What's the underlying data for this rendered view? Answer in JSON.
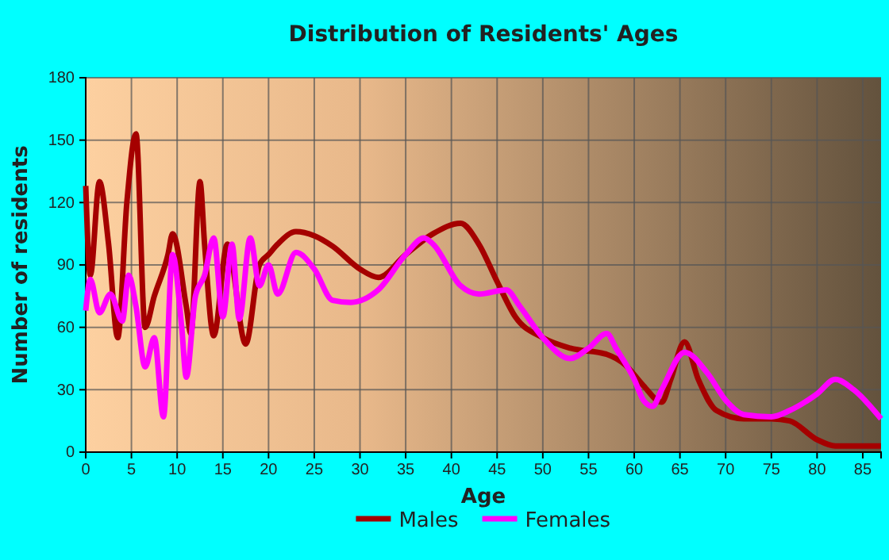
{
  "chart_data": {
    "type": "line",
    "title": "Distribution of Residents' Ages",
    "xlabel": "Age",
    "ylabel": "Number of residents",
    "xlim": [
      0,
      87
    ],
    "xticks": [
      0,
      5,
      10,
      15,
      20,
      25,
      30,
      35,
      40,
      45,
      50,
      55,
      60,
      65,
      70,
      75,
      80,
      85
    ],
    "ylim": [
      0,
      180
    ],
    "yticks": [
      0,
      30,
      60,
      90,
      120,
      150,
      180
    ],
    "grid": true,
    "legend": "bottom",
    "marker": "none",
    "line_style": "solid",
    "series": [
      {
        "name": "Males",
        "color": "#a50000",
        "x": [
          0,
          0.5,
          1.5,
          2.5,
          3.5,
          4.5,
          5.5,
          6.5,
          7.5,
          9,
          9.5,
          11,
          11.5,
          12.5,
          13,
          14,
          15.5,
          17.5,
          19,
          20,
          21,
          23,
          25,
          27,
          30,
          32,
          35,
          38,
          41,
          43,
          45,
          47,
          50,
          53,
          57,
          59,
          61,
          63,
          64,
          65.5,
          67,
          69,
          72,
          75,
          77,
          80,
          82,
          87
        ],
        "values": [
          128,
          85,
          130,
          100,
          55,
          120,
          153,
          60,
          75,
          95,
          105,
          70,
          57,
          130,
          100,
          56,
          100,
          52,
          90,
          95,
          100,
          106,
          104,
          99,
          88,
          84,
          95,
          105,
          110,
          100,
          82,
          65,
          55,
          50,
          47,
          42,
          32,
          24,
          35,
          53,
          35,
          20,
          16,
          16,
          15,
          6,
          3,
          3
        ]
      },
      {
        "name": "Females",
        "color": "#ff00ff",
        "x": [
          0,
          0.5,
          1.5,
          2.7,
          4,
          4.7,
          5.5,
          6.5,
          7.5,
          8.5,
          9.5,
          10.5,
          11,
          12,
          13,
          14,
          15,
          16,
          16.8,
          18,
          19,
          20,
          21,
          23,
          25,
          27,
          29,
          32,
          35,
          37,
          38,
          41,
          43,
          46,
          47.5,
          50,
          53,
          55,
          57,
          58,
          60,
          61,
          62,
          63,
          65.5,
          68,
          70,
          72,
          75,
          77,
          80,
          82,
          84,
          87
        ],
        "values": [
          68,
          83,
          67,
          76,
          63,
          85,
          70,
          41,
          55,
          17,
          95,
          60,
          36,
          75,
          85,
          103,
          65,
          100,
          64,
          103,
          80,
          90,
          76,
          96,
          88,
          73,
          72,
          78,
          95,
          103,
          100,
          80,
          76,
          78,
          70,
          55,
          45,
          50,
          57,
          50,
          35,
          25,
          22,
          30,
          48,
          38,
          25,
          18,
          17,
          20,
          28,
          35,
          30,
          16
        ]
      }
    ]
  }
}
